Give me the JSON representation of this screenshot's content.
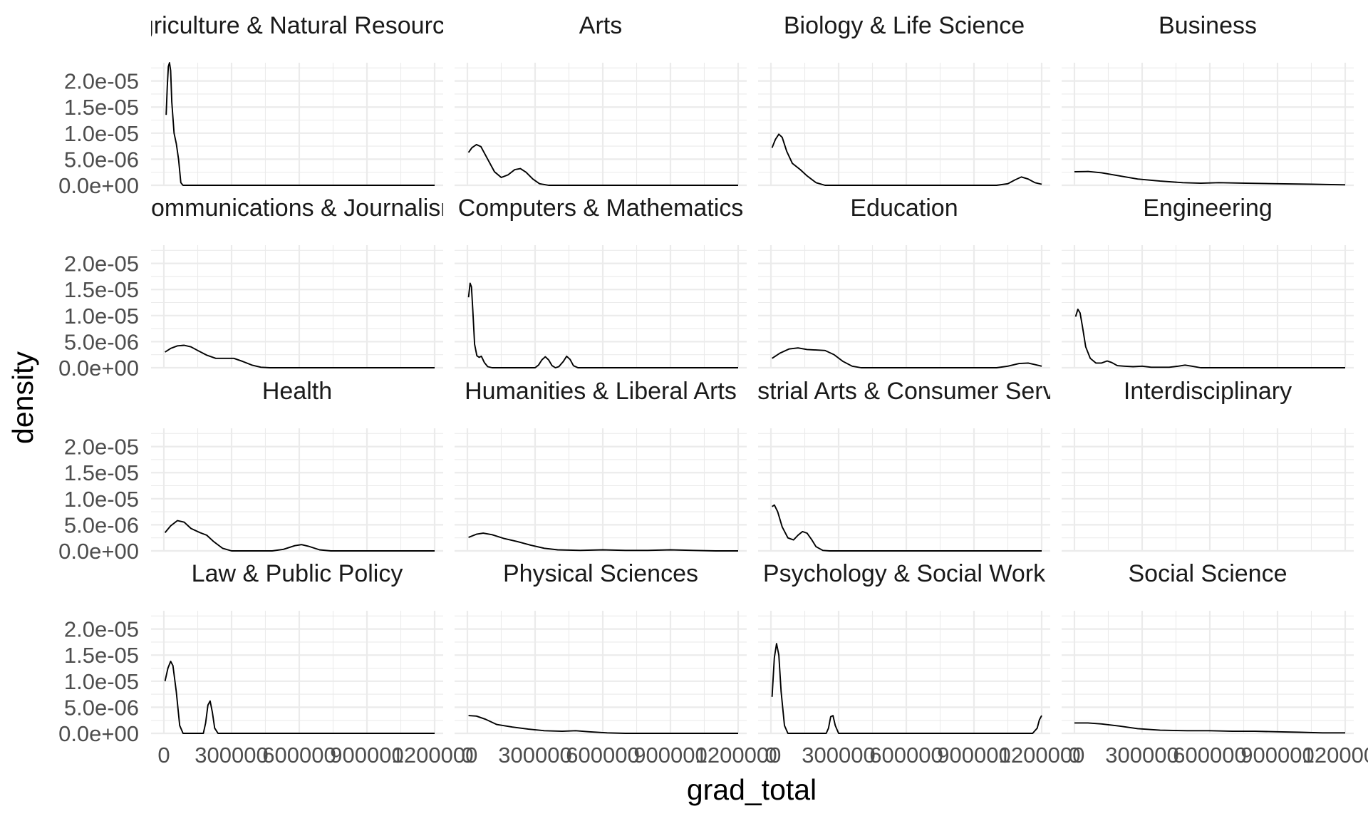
{
  "chart_data": {
    "type": "line",
    "subtype": "density-facets",
    "xlabel": "grad_total",
    "ylabel": "density",
    "xlim": [
      0,
      1200000
    ],
    "ylim": [
      0,
      2.35e-05
    ],
    "x_ticks": [
      0,
      300000,
      600000,
      900000,
      1200000
    ],
    "x_tick_labels": [
      "0",
      "300000",
      "600000",
      "900000",
      "1200000"
    ],
    "y_ticks": [
      0,
      5e-06,
      1e-05,
      1.5e-05,
      2e-05
    ],
    "y_tick_labels": [
      "0.0e+00",
      "5.0e-06",
      "1.0e-05",
      "1.5e-05",
      "2.0e-05"
    ],
    "grid": true,
    "legend": "none",
    "facets": [
      {
        "label": "Agriculture & Natural Resources",
        "points": [
          [
            10000,
            1.35e-05
          ],
          [
            15000,
            1.9e-05
          ],
          [
            20000,
            2.28e-05
          ],
          [
            25000,
            2.35e-05
          ],
          [
            30000,
            2.2e-05
          ],
          [
            35000,
            1.6e-05
          ],
          [
            45000,
            1e-05
          ],
          [
            55000,
            8e-06
          ],
          [
            65000,
            5e-06
          ],
          [
            75000,
            5e-07
          ],
          [
            85000,
            0
          ],
          [
            1200000,
            0
          ]
        ]
      },
      {
        "label": "Arts",
        "points": [
          [
            5000,
            6.3e-06
          ],
          [
            20000,
            7.2e-06
          ],
          [
            40000,
            7.8e-06
          ],
          [
            60000,
            7.4e-06
          ],
          [
            90000,
            5e-06
          ],
          [
            120000,
            2.6e-06
          ],
          [
            150000,
            1.5e-06
          ],
          [
            180000,
            2e-06
          ],
          [
            210000,
            3e-06
          ],
          [
            235000,
            3.2e-06
          ],
          [
            260000,
            2.5e-06
          ],
          [
            290000,
            1.2e-06
          ],
          [
            320000,
            3e-07
          ],
          [
            360000,
            0
          ],
          [
            1200000,
            0
          ]
        ]
      },
      {
        "label": "Biology & Life Science",
        "points": [
          [
            5000,
            7.2e-06
          ],
          [
            20000,
            8.8e-06
          ],
          [
            35000,
            9.8e-06
          ],
          [
            50000,
            9.2e-06
          ],
          [
            70000,
            6.5e-06
          ],
          [
            95000,
            4.2e-06
          ],
          [
            130000,
            3e-06
          ],
          [
            160000,
            1.8e-06
          ],
          [
            200000,
            5e-07
          ],
          [
            240000,
            0
          ],
          [
            1000000,
            0
          ],
          [
            1050000,
            3e-07
          ],
          [
            1080000,
            1e-06
          ],
          [
            1110000,
            1.6e-06
          ],
          [
            1140000,
            1.2e-06
          ],
          [
            1170000,
            5e-07
          ],
          [
            1200000,
            2e-07
          ]
        ]
      },
      {
        "label": "Business",
        "points": [
          [
            0,
            2.6e-06
          ],
          [
            60000,
            2.65e-06
          ],
          [
            120000,
            2.4e-06
          ],
          [
            200000,
            1.8e-06
          ],
          [
            280000,
            1.2e-06
          ],
          [
            380000,
            8e-07
          ],
          [
            480000,
            5e-07
          ],
          [
            560000,
            4e-07
          ],
          [
            640000,
            5e-07
          ],
          [
            760000,
            4e-07
          ],
          [
            900000,
            3e-07
          ],
          [
            1050000,
            2e-07
          ],
          [
            1200000,
            1e-07
          ]
        ]
      },
      {
        "label": "Communications & Journalism",
        "points": [
          [
            5000,
            3e-06
          ],
          [
            30000,
            3.7e-06
          ],
          [
            60000,
            4.2e-06
          ],
          [
            90000,
            4.3e-06
          ],
          [
            120000,
            4e-06
          ],
          [
            150000,
            3.3e-06
          ],
          [
            190000,
            2.4e-06
          ],
          [
            230000,
            1.8e-06
          ],
          [
            270000,
            1.8e-06
          ],
          [
            310000,
            1.8e-06
          ],
          [
            350000,
            1.2e-06
          ],
          [
            390000,
            5e-07
          ],
          [
            430000,
            1e-07
          ],
          [
            470000,
            0
          ],
          [
            1200000,
            0
          ]
        ]
      },
      {
        "label": "Computers & Mathematics",
        "points": [
          [
            5000,
            1.35e-05
          ],
          [
            12000,
            1.62e-05
          ],
          [
            18000,
            1.55e-05
          ],
          [
            24000,
            1.1e-05
          ],
          [
            32000,
            4.5e-06
          ],
          [
            42000,
            2.3e-06
          ],
          [
            52000,
            2e-06
          ],
          [
            62000,
            2.2e-06
          ],
          [
            75000,
            1e-06
          ],
          [
            90000,
            2e-07
          ],
          [
            110000,
            0
          ],
          [
            300000,
            0
          ],
          [
            315000,
            5e-07
          ],
          [
            330000,
            1.5e-06
          ],
          [
            345000,
            2.1e-06
          ],
          [
            360000,
            1.5e-06
          ],
          [
            375000,
            4e-07
          ],
          [
            390000,
            0
          ],
          [
            405000,
            2e-07
          ],
          [
            425000,
            1.2e-06
          ],
          [
            440000,
            2.2e-06
          ],
          [
            455000,
            1.6e-06
          ],
          [
            470000,
            4e-07
          ],
          [
            490000,
            0
          ],
          [
            1200000,
            0
          ]
        ]
      },
      {
        "label": "Education",
        "points": [
          [
            5000,
            1.8e-06
          ],
          [
            40000,
            2.8e-06
          ],
          [
            80000,
            3.6e-06
          ],
          [
            120000,
            3.8e-06
          ],
          [
            160000,
            3.5e-06
          ],
          [
            200000,
            3.4e-06
          ],
          [
            240000,
            3.3e-06
          ],
          [
            280000,
            2.5e-06
          ],
          [
            320000,
            1.2e-06
          ],
          [
            360000,
            3e-07
          ],
          [
            400000,
            0
          ],
          [
            1000000,
            0
          ],
          [
            1050000,
            3e-07
          ],
          [
            1100000,
            8e-07
          ],
          [
            1140000,
            9e-07
          ],
          [
            1170000,
            6e-07
          ],
          [
            1200000,
            3e-07
          ]
        ]
      },
      {
        "label": "Engineering",
        "points": [
          [
            5000,
            9.8e-06
          ],
          [
            15000,
            1.12e-05
          ],
          [
            25000,
            1.05e-05
          ],
          [
            35000,
            8e-06
          ],
          [
            50000,
            4e-06
          ],
          [
            70000,
            1.8e-06
          ],
          [
            95000,
            9e-07
          ],
          [
            120000,
            9e-07
          ],
          [
            145000,
            1.3e-06
          ],
          [
            165000,
            1e-06
          ],
          [
            190000,
            4e-07
          ],
          [
            220000,
            3e-07
          ],
          [
            260000,
            2e-07
          ],
          [
            300000,
            3e-07
          ],
          [
            340000,
            1e-07
          ],
          [
            380000,
            1e-07
          ],
          [
            420000,
            1e-07
          ],
          [
            460000,
            3e-07
          ],
          [
            490000,
            5e-07
          ],
          [
            520000,
            3e-07
          ],
          [
            560000,
            0
          ],
          [
            1200000,
            0
          ]
        ]
      },
      {
        "label": "Health",
        "points": [
          [
            5000,
            3.5e-06
          ],
          [
            30000,
            4.8e-06
          ],
          [
            60000,
            5.8e-06
          ],
          [
            90000,
            5.5e-06
          ],
          [
            120000,
            4.3e-06
          ],
          [
            160000,
            3.5e-06
          ],
          [
            190000,
            3e-06
          ],
          [
            220000,
            1.8e-06
          ],
          [
            260000,
            5e-07
          ],
          [
            300000,
            0
          ],
          [
            480000,
            0
          ],
          [
            530000,
            3e-07
          ],
          [
            580000,
            1e-06
          ],
          [
            610000,
            1.2e-06
          ],
          [
            640000,
            9e-07
          ],
          [
            690000,
            2e-07
          ],
          [
            740000,
            0
          ],
          [
            1200000,
            0
          ]
        ]
      },
      {
        "label": "Humanities & Liberal Arts",
        "points": [
          [
            5000,
            2.6e-06
          ],
          [
            40000,
            3.2e-06
          ],
          [
            70000,
            3.4e-06
          ],
          [
            110000,
            3.1e-06
          ],
          [
            160000,
            2.4e-06
          ],
          [
            220000,
            1.8e-06
          ],
          [
            280000,
            1.1e-06
          ],
          [
            340000,
            5e-07
          ],
          [
            400000,
            2e-07
          ],
          [
            500000,
            1e-07
          ],
          [
            600000,
            2e-07
          ],
          [
            700000,
            1e-07
          ],
          [
            800000,
            1e-07
          ],
          [
            900000,
            2e-07
          ],
          [
            1000000,
            1e-07
          ],
          [
            1100000,
            0
          ],
          [
            1200000,
            0
          ]
        ]
      },
      {
        "label": "Industrial Arts & Consumer Services",
        "points": [
          [
            5000,
            8.5e-06
          ],
          [
            15000,
            8.8e-06
          ],
          [
            30000,
            7.5e-06
          ],
          [
            50000,
            4.6e-06
          ],
          [
            75000,
            2.5e-06
          ],
          [
            100000,
            2.1e-06
          ],
          [
            120000,
            3e-06
          ],
          [
            140000,
            3.7e-06
          ],
          [
            160000,
            3.4e-06
          ],
          [
            180000,
            2.2e-06
          ],
          [
            200000,
            8e-07
          ],
          [
            230000,
            1e-07
          ],
          [
            260000,
            0
          ],
          [
            1200000,
            0
          ]
        ]
      },
      {
        "label": "Interdisciplinary",
        "points": []
      },
      {
        "label": "Law & Public Policy",
        "points": [
          [
            5000,
            1e-05
          ],
          [
            18000,
            1.25e-05
          ],
          [
            30000,
            1.38e-05
          ],
          [
            40000,
            1.3e-05
          ],
          [
            55000,
            8e-06
          ],
          [
            70000,
            1.5e-06
          ],
          [
            85000,
            0
          ],
          [
            175000,
            0
          ],
          [
            185000,
            2e-06
          ],
          [
            195000,
            5.4e-06
          ],
          [
            205000,
            6.2e-06
          ],
          [
            215000,
            4e-06
          ],
          [
            225000,
            1e-06
          ],
          [
            240000,
            0
          ],
          [
            1200000,
            0
          ]
        ]
      },
      {
        "label": "Physical Sciences",
        "points": [
          [
            5000,
            3.4e-06
          ],
          [
            40000,
            3.3e-06
          ],
          [
            80000,
            2.7e-06
          ],
          [
            130000,
            1.7e-06
          ],
          [
            200000,
            1.2e-06
          ],
          [
            270000,
            8e-07
          ],
          [
            340000,
            5e-07
          ],
          [
            420000,
            4e-07
          ],
          [
            480000,
            5e-07
          ],
          [
            540000,
            3e-07
          ],
          [
            620000,
            1e-07
          ],
          [
            700000,
            0
          ],
          [
            1200000,
            0
          ]
        ]
      },
      {
        "label": "Psychology & Social Work",
        "points": [
          [
            5000,
            7e-06
          ],
          [
            15000,
            1.45e-05
          ],
          [
            25000,
            1.72e-05
          ],
          [
            35000,
            1.5e-05
          ],
          [
            45000,
            8e-06
          ],
          [
            60000,
            1.5e-06
          ],
          [
            75000,
            0
          ],
          [
            245000,
            0
          ],
          [
            255000,
            1e-06
          ],
          [
            265000,
            3.2e-06
          ],
          [
            275000,
            3.4e-06
          ],
          [
            285000,
            1.5e-06
          ],
          [
            300000,
            0
          ],
          [
            1160000,
            0
          ],
          [
            1180000,
            1e-06
          ],
          [
            1190000,
            2.6e-06
          ],
          [
            1200000,
            3.4e-06
          ]
        ]
      },
      {
        "label": "Social Science",
        "points": [
          [
            0,
            2e-06
          ],
          [
            60000,
            2e-06
          ],
          [
            120000,
            1.8e-06
          ],
          [
            200000,
            1.4e-06
          ],
          [
            280000,
            9e-07
          ],
          [
            380000,
            6e-07
          ],
          [
            500000,
            5e-07
          ],
          [
            600000,
            5e-07
          ],
          [
            700000,
            4e-07
          ],
          [
            800000,
            4e-07
          ],
          [
            900000,
            3e-07
          ],
          [
            1000000,
            2e-07
          ],
          [
            1100000,
            1e-07
          ],
          [
            1200000,
            1e-07
          ]
        ]
      }
    ]
  }
}
